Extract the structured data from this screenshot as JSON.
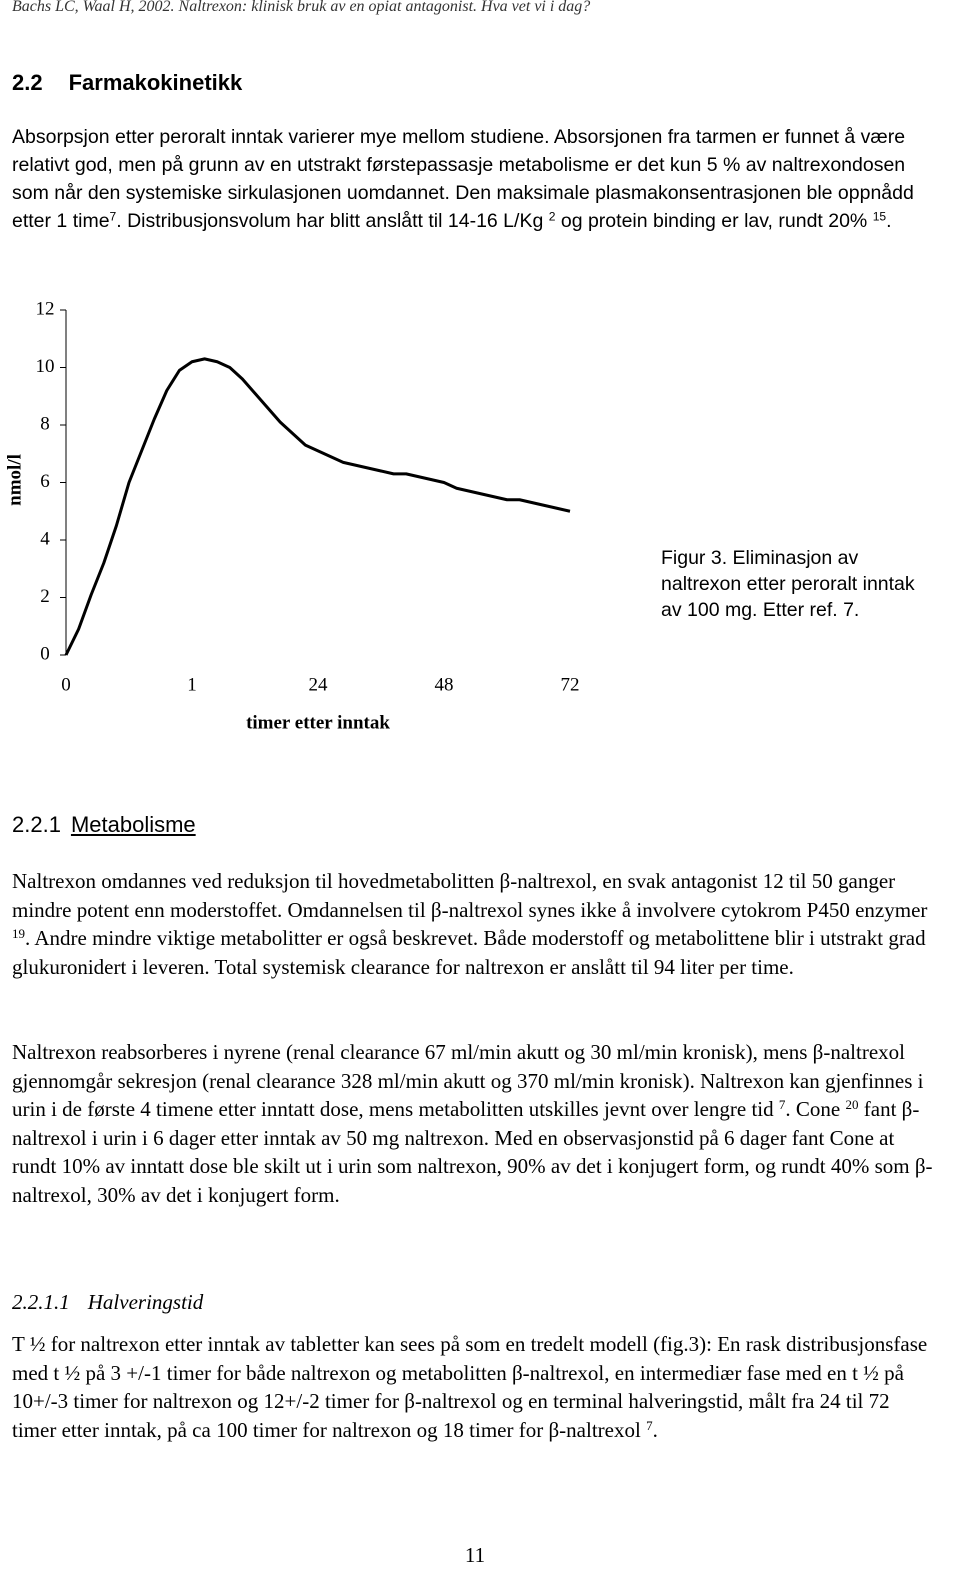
{
  "header": "Bachs LC, Waal H, 2002. Naltrexon: klinisk bruk av en opiat antagonist. Hva vet vi i dag?",
  "section": {
    "number": "2.2",
    "title": "Farmakokinetikk"
  },
  "intro": [
    {
      "text": "Absorpsjon etter peroralt inntak varierer mye mellom studiene. Absorsjonen fra tarmen er funnet å være relativt god, men på grunn av en utstrakt førstepassasje metabolisme er det kun 5 % av naltrexondosen som når den systemiske sirkulasjonen uomdannet. Den maksimale plasmakonsentrasjonen ble oppnådd etter 1 time"
    },
    {
      "sup": "7"
    },
    {
      "text": ". Distribusjonsvolum har blitt anslått til 14-16 L/Kg "
    },
    {
      "sup": "2"
    },
    {
      "text": " og protein binding er lav, rundt 20% "
    },
    {
      "sup": "15"
    },
    {
      "text": "."
    }
  ],
  "chart_data": {
    "type": "line",
    "x_label": "timer etter inntak",
    "y_label": "nmol/l",
    "color": "#000000",
    "categories": [
      "0",
      null,
      null,
      null,
      null,
      null,
      null,
      null,
      null,
      null,
      "1",
      null,
      null,
      null,
      null,
      null,
      null,
      null,
      null,
      null,
      "24",
      null,
      null,
      null,
      null,
      null,
      null,
      null,
      null,
      null,
      "48",
      null,
      null,
      null,
      null,
      null,
      null,
      null,
      null,
      null,
      "72"
    ],
    "values": [
      0,
      0.9,
      2.1,
      3.2,
      4.5,
      6.0,
      7.1,
      8.2,
      9.2,
      9.9,
      10.2,
      10.3,
      10.2,
      10.0,
      9.6,
      9.1,
      8.6,
      8.1,
      7.7,
      7.3,
      7.1,
      6.9,
      6.7,
      6.6,
      6.5,
      6.4,
      6.3,
      6.3,
      6.2,
      6.1,
      6.0,
      5.8,
      5.7,
      5.6,
      5.5,
      5.4,
      5.4,
      5.3,
      5.2,
      5.1,
      5.0
    ],
    "ylim": [
      0,
      12
    ],
    "yticks": [
      0,
      2,
      4,
      6,
      8,
      10,
      12
    ]
  },
  "figure_caption": [
    "Figur 3. Eliminasjon av",
    "naltrexon etter peroralt inntak",
    "av 100 mg.  Etter ref. 7."
  ],
  "subsection": {
    "number": "2.2.1",
    "title": "Metabolisme"
  },
  "metabolism": [
    [
      {
        "text": "Naltrexon omdannes ved reduksjon til hovedmetabolitten β-naltrexol, en svak antagonist 12 til 50 ganger mindre potent enn moderstoffet. Omdannelsen til β-naltrexol synes ikke å involvere cytokrom P450 enzymer "
      },
      {
        "sup": "19"
      },
      {
        "text": ". Andre mindre viktige metabolitter er også beskrevet. Både moderstoff og metabolittene blir i utstrakt grad glukuronidert i leveren. Total systemisk clearance for naltrexon er anslått til 94 liter per time."
      }
    ],
    [
      {
        "text": "Naltrexon reabsorberes i nyrene (renal clearance 67 ml/min akutt og 30 ml/min kronisk), mens β-naltrexol gjennomgår sekresjon (renal clearance 328 ml/min akutt og 370 ml/min kronisk). Naltrexon kan gjenfinnes i urin i de første 4 timene etter inntatt dose, mens metabolitten utskilles jevnt over lengre tid "
      },
      {
        "sup": "7"
      },
      {
        "text": ". Cone "
      },
      {
        "sup": "20"
      },
      {
        "text": " fant β-naltrexol i urin i 6 dager etter inntak av 50 mg naltrexon. Med en observasjonstid på 6 dager fant Cone at rundt 10% av inntatt dose ble skilt ut i urin som naltrexon, 90% av det i konjugert form, og rundt 40% som β-naltrexol, 30% av det i konjugert form."
      }
    ]
  ],
  "subsubsection": {
    "number": "2.2.1.1",
    "title": "Halveringstid"
  },
  "halflife": [
    {
      "text": "T ½ for naltrexon etter inntak av tabletter kan sees på som en tredelt modell (fig.3): En rask distribusjonsfase med t ½ på 3 +/-1 timer for både naltrexon og metabolitten β-naltrexol, en intermediær fase med en t ½ på 10+/-3 timer for naltrexon og 12+/-2 timer for β-naltrexol og en terminal halveringstid, målt fra 24 til 72 timer etter inntak, på ca 100 timer for naltrexon og 18 timer for β-naltrexol "
    },
    {
      "sup": "7"
    },
    {
      "text": "."
    }
  ],
  "page_number": "11"
}
